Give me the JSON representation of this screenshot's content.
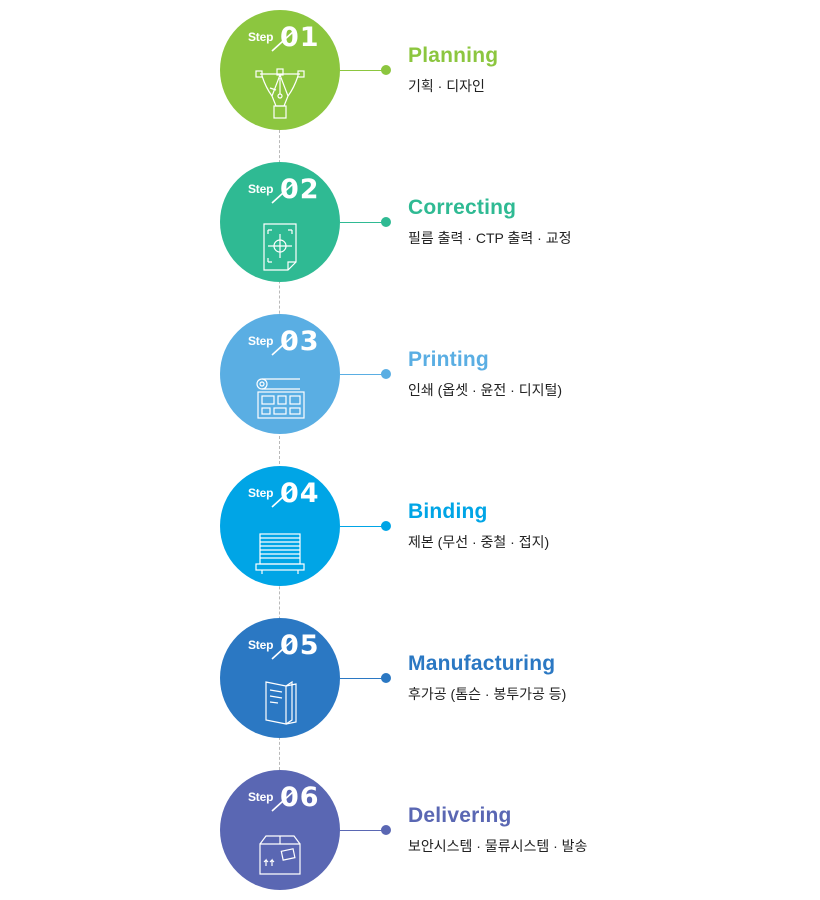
{
  "steps": [
    {
      "label": "Step",
      "num": "01",
      "title": "Planning",
      "desc": "기획 · 디자인",
      "color": "#8cc63f",
      "icon": "pen-tool-icon"
    },
    {
      "label": "Step",
      "num": "02",
      "title": "Correcting",
      "desc": "필름 출력 · CTP 출력 · 교정",
      "color": "#2fba93",
      "icon": "crosshair-document-icon"
    },
    {
      "label": "Step",
      "num": "03",
      "title": "Printing",
      "desc": "인쇄 (옵셋 · 윤전 · 디지털)",
      "color": "#5aaee3",
      "icon": "printer-icon"
    },
    {
      "label": "Step",
      "num": "04",
      "title": "Binding",
      "desc": "제본 (무선 · 중철 · 접지)",
      "color": "#00a5e6",
      "icon": "paper-stack-icon"
    },
    {
      "label": "Step",
      "num": "05",
      "title": "Manufacturing",
      "desc": "후가공 (톰슨 · 봉투가공 등)",
      "color": "#2b78c3",
      "icon": "book-icon"
    },
    {
      "label": "Step",
      "num": "06",
      "title": "Delivering",
      "desc": "보안시스템 · 물류시스템 · 발송",
      "color": "#5a67b3",
      "icon": "box-icon"
    }
  ]
}
